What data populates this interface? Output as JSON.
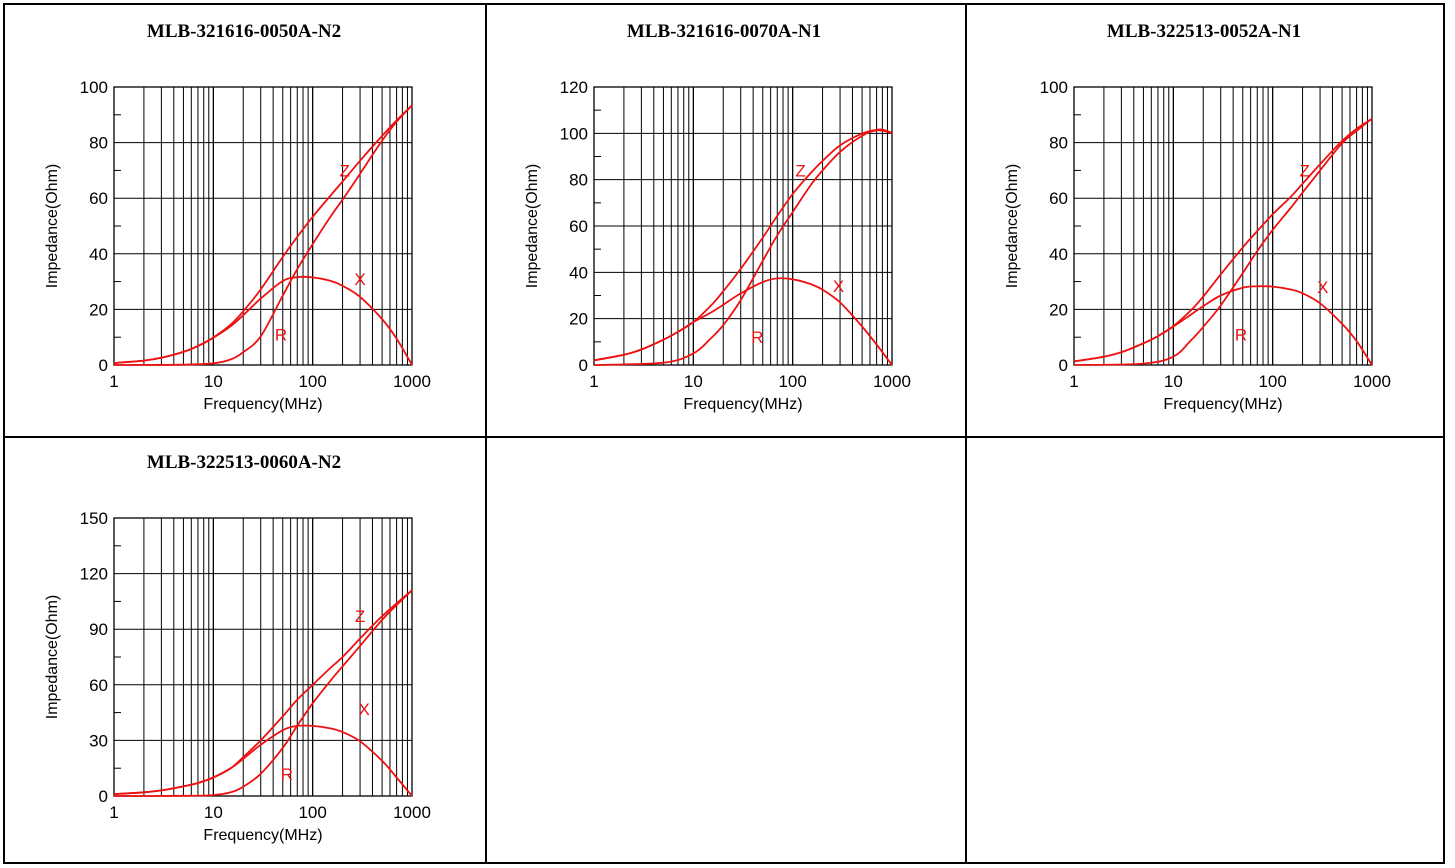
{
  "chart_data": [
    {
      "type": "line",
      "title": "MLB-321616-0050A-N2",
      "xlabel": "Frequency(MHz)",
      "ylabel": "Impedance(Ohm)",
      "xscale": "log",
      "xlim": [
        1,
        1000
      ],
      "ylim": [
        0,
        100
      ],
      "xticks": [
        "1",
        "10",
        "100",
        "1000"
      ],
      "yticks": [
        "0",
        "20",
        "40",
        "60",
        "80",
        "100"
      ],
      "grid": true,
      "series": [
        {
          "name": "Z",
          "x": [
            1,
            2,
            3,
            5,
            7,
            10,
            15,
            20,
            30,
            50,
            70,
            100,
            150,
            200,
            300,
            500,
            700,
            1000
          ],
          "y": [
            0.7,
            1.6,
            2.6,
            4.7,
            6.8,
            9.9,
            14.6,
            19.3,
            27.2,
            38.9,
            46.1,
            53.3,
            60.8,
            66.0,
            73.5,
            82.4,
            88.0,
            93.4
          ]
        },
        {
          "name": "X",
          "x": [
            1,
            2,
            3,
            5,
            7,
            10,
            15,
            20,
            30,
            50,
            70,
            100,
            150,
            200,
            300,
            500,
            700,
            1000
          ],
          "y": [
            0.7,
            1.6,
            2.6,
            4.7,
            6.8,
            9.8,
            14.0,
            17.9,
            23.9,
            30.2,
            31.6,
            31.5,
            30.3,
            28.5,
            24.5,
            16.5,
            9.5,
            0.0
          ]
        },
        {
          "name": "R",
          "x": [
            1,
            5,
            10,
            15,
            20,
            30,
            50,
            70,
            100,
            150,
            200,
            300,
            500,
            700,
            1000
          ],
          "y": [
            0.0,
            0.1,
            0.6,
            2.0,
            4.6,
            10.3,
            25.0,
            34.5,
            43.5,
            53.2,
            59.5,
            68.8,
            80.7,
            87.5,
            93.4
          ]
        }
      ],
      "annotations": [
        {
          "text": "Z",
          "x": 210,
          "y": 70
        },
        {
          "text": "X",
          "x": 300,
          "y": 31
        },
        {
          "text": "R",
          "x": 48,
          "y": 11
        }
      ]
    },
    {
      "type": "line",
      "title": "MLB-321616-0070A-N1",
      "xlabel": "Frequency(MHz)",
      "ylabel": "Impedance(Ohm)",
      "xscale": "log",
      "xlim": [
        1,
        1000
      ],
      "ylim": [
        0,
        120
      ],
      "xticks": [
        "1",
        "10",
        "100",
        "1000"
      ],
      "yticks": [
        "0",
        "20",
        "40",
        "60",
        "80",
        "100",
        "120"
      ],
      "grid": true,
      "series": [
        {
          "name": "Z",
          "x": [
            1,
            2,
            3,
            5,
            7,
            10,
            15,
            20,
            30,
            50,
            70,
            100,
            150,
            200,
            300,
            500,
            700,
            800,
            1000
          ],
          "y": [
            2.0,
            4.4,
            6.7,
            10.9,
            14.3,
            18.5,
            25.6,
            31.8,
            41.5,
            55.0,
            64.4,
            73.8,
            82.6,
            88.1,
            94.8,
            99.9,
            101.5,
            101.6,
            100.2
          ]
        },
        {
          "name": "X",
          "x": [
            1,
            2,
            3,
            5,
            7,
            10,
            15,
            20,
            30,
            50,
            70,
            100,
            150,
            200,
            300,
            500,
            700,
            1000
          ],
          "y": [
            2.0,
            4.4,
            6.7,
            10.9,
            14.3,
            18.5,
            22.6,
            26.0,
            30.9,
            35.8,
            37.4,
            37.0,
            35.0,
            32.5,
            27.0,
            16.6,
            8.8,
            0.0
          ]
        },
        {
          "name": "R",
          "x": [
            1,
            5,
            10,
            15,
            20,
            30,
            50,
            70,
            100,
            150,
            200,
            300,
            500,
            700,
            1000
          ],
          "y": [
            0.0,
            1.0,
            5.0,
            11.5,
            17.2,
            28.0,
            45.0,
            56.0,
            66.0,
            77.3,
            84.0,
            92.0,
            98.9,
            101.3,
            100.2
          ]
        }
      ],
      "annotations": [
        {
          "text": "Z",
          "x": 120,
          "y": 84
        },
        {
          "text": "X",
          "x": 290,
          "y": 34
        },
        {
          "text": "R",
          "x": 44,
          "y": 12
        }
      ]
    },
    {
      "type": "line",
      "title": "MLB-322513-0052A-N1",
      "xlabel": "Frequency(MHz)",
      "ylabel": "Impedance(Ohm)",
      "xscale": "log",
      "xlim": [
        1,
        1000
      ],
      "ylim": [
        0,
        100
      ],
      "xticks": [
        "1",
        "10",
        "100",
        "1000"
      ],
      "yticks": [
        "0",
        "20",
        "40",
        "60",
        "80",
        "100"
      ],
      "grid": true,
      "series": [
        {
          "name": "Z",
          "x": [
            1,
            2,
            3,
            5,
            7,
            10,
            15,
            20,
            30,
            50,
            70,
            100,
            150,
            200,
            300,
            500,
            700,
            1000
          ],
          "y": [
            1.3,
            3.0,
            4.6,
            7.8,
            10.4,
            14.0,
            19.6,
            24.6,
            32.6,
            42.3,
            48.2,
            54.2,
            60.3,
            65.2,
            72.2,
            80.6,
            85.0,
            88.6
          ]
        },
        {
          "name": "X",
          "x": [
            1,
            2,
            3,
            5,
            7,
            10,
            15,
            20,
            30,
            50,
            70,
            100,
            150,
            200,
            300,
            500,
            700,
            1000
          ],
          "y": [
            1.3,
            3.0,
            4.6,
            7.8,
            10.4,
            13.8,
            18.1,
            21.2,
            25.0,
            27.8,
            28.3,
            28.2,
            27.2,
            25.8,
            22.2,
            14.8,
            8.6,
            0.0
          ]
        },
        {
          "name": "R",
          "x": [
            1,
            5,
            10,
            15,
            20,
            30,
            50,
            70,
            100,
            150,
            200,
            300,
            500,
            700,
            1000
          ],
          "y": [
            0.0,
            0.5,
            3.0,
            8.8,
            13.7,
            21.4,
            33.1,
            41.0,
            48.6,
            56.3,
            62.0,
            70.0,
            79.8,
            84.2,
            88.6
          ]
        }
      ],
      "annotations": [
        {
          "text": "Z",
          "x": 210,
          "y": 70
        },
        {
          "text": "X",
          "x": 320,
          "y": 28
        },
        {
          "text": "R",
          "x": 48,
          "y": 11
        }
      ]
    },
    {
      "type": "line",
      "title": "MLB-322513-0060A-N2",
      "xlabel": "Frequency(MHz)",
      "ylabel": "Impedance(Ohm)",
      "xscale": "log",
      "xlim": [
        1,
        1000
      ],
      "ylim": [
        0,
        150
      ],
      "xticks": [
        "1",
        "10",
        "100",
        "1000"
      ],
      "yticks": [
        "0",
        "30",
        "60",
        "90",
        "120",
        "150"
      ],
      "grid": true,
      "series": [
        {
          "name": "Z",
          "x": [
            1,
            2,
            3,
            5,
            7,
            10,
            15,
            20,
            30,
            50,
            70,
            100,
            150,
            200,
            300,
            500,
            700,
            1000
          ],
          "y": [
            1.0,
            2.0,
            3.0,
            5.2,
            7.0,
            10.0,
            15.0,
            21.0,
            30.0,
            43.0,
            52.0,
            60.0,
            69.0,
            75.0,
            85.0,
            97.0,
            104.0,
            111.0
          ]
        },
        {
          "name": "X",
          "x": [
            1,
            2,
            3,
            5,
            7,
            10,
            15,
            20,
            30,
            50,
            70,
            100,
            150,
            200,
            300,
            500,
            700,
            1000
          ],
          "y": [
            1.0,
            2.0,
            3.0,
            5.2,
            7.0,
            10.0,
            15.0,
            20.0,
            27.6,
            35.5,
            37.8,
            37.8,
            36.5,
            34.5,
            29.5,
            19.0,
            10.0,
            0.0
          ]
        },
        {
          "name": "R",
          "x": [
            1,
            5,
            10,
            15,
            20,
            30,
            50,
            70,
            100,
            150,
            200,
            300,
            500,
            700,
            1000
          ],
          "y": [
            0.0,
            0.1,
            0.5,
            2.0,
            5.0,
            12.0,
            26.0,
            38.0,
            50.0,
            62.0,
            70.0,
            81.0,
            95.0,
            103.0,
            111.0
          ]
        }
      ],
      "annotations": [
        {
          "text": "Z",
          "x": 300,
          "y": 97
        },
        {
          "text": "X",
          "x": 330,
          "y": 47
        },
        {
          "text": "R",
          "x": 55,
          "y": 12
        }
      ]
    }
  ],
  "style": {
    "curve_color": "#ee1111",
    "annotation_color": "#ee1111",
    "grid_color": "#000000"
  }
}
